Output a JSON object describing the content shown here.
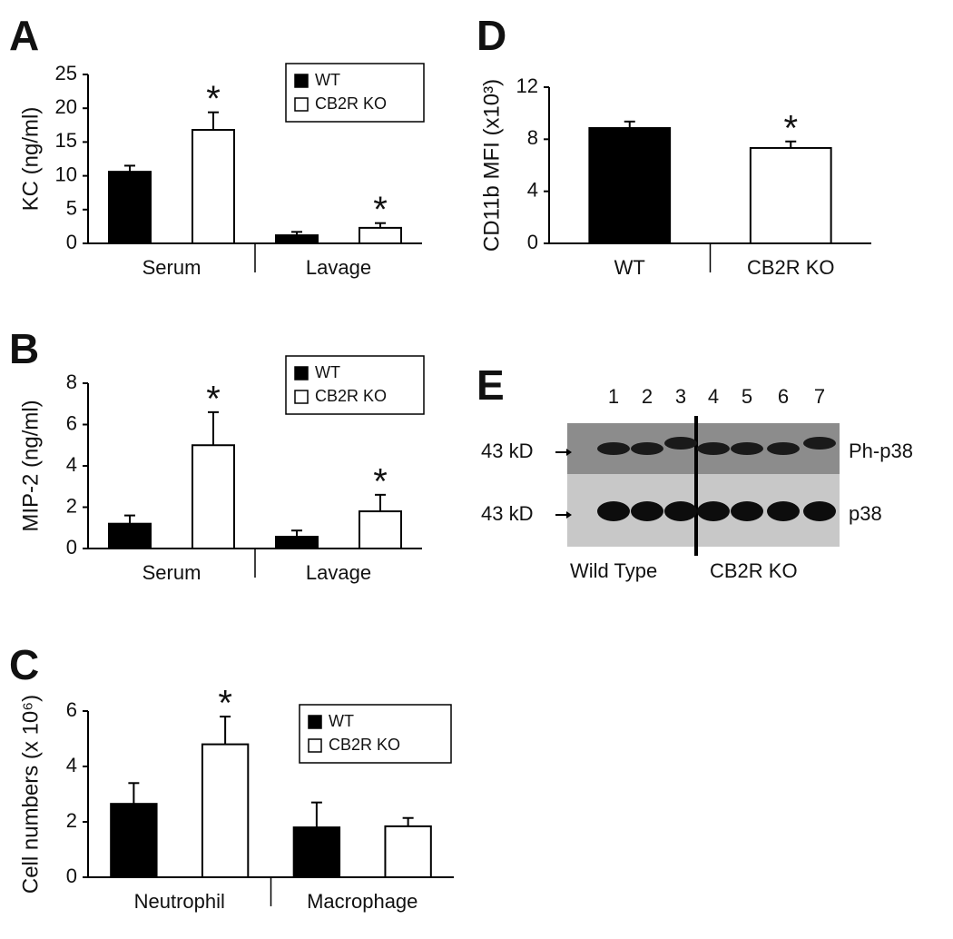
{
  "chart_data": [
    {
      "type": "bar",
      "panel_label": "A",
      "y_label": "KC (ng/ml)",
      "categories": [
        "Serum",
        "Lavage"
      ],
      "series": [
        {
          "name": "WT",
          "color": "#000000",
          "values": [
            10.6,
            1.2
          ],
          "errors": [
            0.9,
            0.5
          ]
        },
        {
          "name": "CB2R KO",
          "color": "#ffffff",
          "values": [
            16.8,
            2.3
          ],
          "errors": [
            2.6,
            0.7
          ],
          "annotations": [
            "*",
            "*"
          ]
        }
      ],
      "ylim": [
        0,
        25
      ],
      "yticks": [
        0,
        5,
        10,
        15,
        20,
        25
      ],
      "legend": "upper right"
    },
    {
      "type": "bar",
      "panel_label": "B",
      "y_label": "MIP-2 (ng/ml)",
      "categories": [
        "Serum",
        "Lavage"
      ],
      "series": [
        {
          "name": "WT",
          "color": "#000000",
          "values": [
            1.2,
            0.57
          ],
          "errors": [
            0.4,
            0.3
          ]
        },
        {
          "name": "CB2R KO",
          "color": "#ffffff",
          "values": [
            5.0,
            1.8
          ],
          "errors": [
            1.6,
            0.8
          ],
          "annotations": [
            "*",
            "*"
          ]
        }
      ],
      "ylim": [
        0,
        8
      ],
      "yticks": [
        0,
        2,
        4,
        6,
        8
      ],
      "legend": "upper right"
    },
    {
      "type": "bar",
      "panel_label": "C",
      "y_label": "Cell numbers (x 10⁶)",
      "categories": [
        "Neutrophil",
        "Macrophage"
      ],
      "series": [
        {
          "name": "WT",
          "color": "#000000",
          "values": [
            2.65,
            1.8
          ],
          "errors": [
            0.75,
            0.9
          ]
        },
        {
          "name": "CB2R KO",
          "color": "#ffffff",
          "values": [
            4.8,
            1.84
          ],
          "errors": [
            1.0,
            0.3
          ],
          "annotations": [
            "*",
            null
          ]
        }
      ],
      "ylim": [
        0,
        6
      ],
      "yticks": [
        0,
        2,
        4,
        6
      ],
      "legend": "upper right"
    },
    {
      "type": "bar",
      "panel_label": "D",
      "y_label": "CD11b MFI (x10³)",
      "categories": [
        "WT",
        "CB2R KO"
      ],
      "values": [
        8.86,
        7.33
      ],
      "errors": [
        0.5,
        0.5
      ],
      "colors": [
        "#000000",
        "#ffffff"
      ],
      "annotations": [
        null,
        "*"
      ],
      "ylim": [
        0,
        12
      ],
      "yticks": [
        0,
        4,
        8,
        12
      ]
    }
  ],
  "blot": {
    "panel_label": "E",
    "lanes": [
      "1",
      "2",
      "3",
      "4",
      "5",
      "6",
      "7"
    ],
    "rows": [
      {
        "marker": "43 kD",
        "label": "Ph-p38"
      },
      {
        "marker": "43 kD",
        "label": "p38"
      }
    ],
    "groups": [
      "Wild Type",
      "CB2R KO"
    ]
  }
}
